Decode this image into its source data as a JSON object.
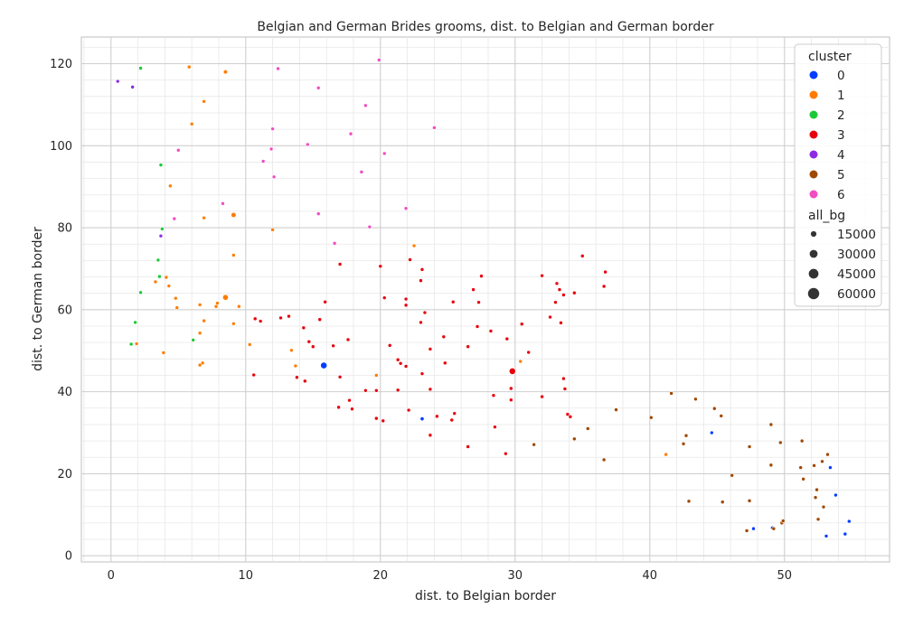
{
  "chart_data": {
    "type": "scatter",
    "title": "Belgian and German Brides grooms, dist. to Belgian and German border",
    "xlabel": "dist. to Belgian border",
    "ylabel": "dist. to German border",
    "xlim": [
      -2.2,
      57.8
    ],
    "ylim": [
      -1.5,
      126.5
    ],
    "xticks": [
      0,
      10,
      20,
      30,
      40,
      50
    ],
    "yticks": [
      0,
      20,
      40,
      60,
      80,
      100,
      120
    ],
    "grid": true,
    "legend": {
      "placement": "top-right",
      "hue_title": "cluster",
      "size_title": "all_bg",
      "size_entries": [
        15000,
        30000,
        45000,
        60000
      ]
    },
    "clusters": [
      {
        "name": "0",
        "color": "#023eff",
        "points": [
          [
            15.8,
            46.4,
            20000
          ],
          [
            23.1,
            33.4,
            7000
          ],
          [
            44.6,
            30.0,
            6000
          ],
          [
            53.4,
            21.5,
            1500
          ],
          [
            53.8,
            14.8,
            2500
          ],
          [
            54.8,
            8.4,
            2000
          ],
          [
            54.5,
            5.3,
            3000
          ],
          [
            53.1,
            4.8,
            1500
          ],
          [
            47.7,
            6.6,
            1500
          ],
          [
            49.1,
            6.8,
            1500
          ]
        ]
      },
      {
        "name": "1",
        "color": "#ff7c00",
        "points": [
          [
            5.8,
            119.2,
            2500
          ],
          [
            8.5,
            118.0,
            8000
          ],
          [
            6.9,
            110.8,
            2500
          ],
          [
            6.0,
            105.3,
            6000
          ],
          [
            4.4,
            90.2,
            1500
          ],
          [
            6.9,
            82.4,
            4000
          ],
          [
            9.1,
            83.1,
            12000
          ],
          [
            12.0,
            79.5,
            2500
          ],
          [
            9.1,
            73.3,
            3000
          ],
          [
            8.5,
            63.0,
            15000
          ],
          [
            4.1,
            67.9,
            2500
          ],
          [
            4.3,
            65.8,
            2500
          ],
          [
            3.3,
            66.8,
            2500
          ],
          [
            4.8,
            62.8,
            2500
          ],
          [
            4.9,
            60.5,
            2500
          ],
          [
            7.8,
            60.8,
            2000
          ],
          [
            7.9,
            61.6,
            2000
          ],
          [
            9.5,
            60.8,
            2000
          ],
          [
            6.6,
            61.2,
            2000
          ],
          [
            9.1,
            56.6,
            2000
          ],
          [
            6.9,
            57.3,
            1500
          ],
          [
            6.6,
            54.3,
            1500
          ],
          [
            10.3,
            51.5,
            2000
          ],
          [
            1.9,
            51.7,
            1500
          ],
          [
            3.9,
            49.5,
            1500
          ],
          [
            6.8,
            47.0,
            1500
          ],
          [
            6.6,
            46.5,
            1500
          ],
          [
            13.4,
            50.1,
            2000
          ],
          [
            13.7,
            46.3,
            3000
          ],
          [
            19.7,
            44.0,
            3500
          ],
          [
            22.5,
            75.6,
            2000
          ],
          [
            30.4,
            47.4,
            1500
          ],
          [
            41.2,
            24.7,
            3500
          ]
        ]
      },
      {
        "name": "2",
        "color": "#1ac938",
        "points": [
          [
            2.2,
            118.9,
            2000
          ],
          [
            3.7,
            95.3,
            3000
          ],
          [
            3.8,
            79.7,
            2000
          ],
          [
            3.5,
            72.1,
            2000
          ],
          [
            3.6,
            68.1,
            2000
          ],
          [
            2.2,
            64.2,
            2000
          ],
          [
            1.8,
            56.9,
            1500
          ],
          [
            1.5,
            51.6,
            3500
          ],
          [
            6.1,
            52.6,
            3500
          ]
        ]
      },
      {
        "name": "3",
        "color": "#e8000b",
        "points": [
          [
            29.8,
            45.0,
            20000
          ],
          [
            17.0,
            71.1,
            3000
          ],
          [
            15.9,
            61.9,
            4500
          ],
          [
            13.2,
            58.4,
            2000
          ],
          [
            12.6,
            58.0,
            2000
          ],
          [
            11.1,
            57.2,
            2000
          ],
          [
            10.7,
            57.8,
            2000
          ],
          [
            15.5,
            57.6,
            3000
          ],
          [
            14.3,
            55.6,
            3000
          ],
          [
            17.6,
            52.7,
            2000
          ],
          [
            16.5,
            51.2,
            3000
          ],
          [
            15.0,
            51.0,
            2000
          ],
          [
            14.7,
            52.2,
            2000
          ],
          [
            17.0,
            43.6,
            2000
          ],
          [
            14.4,
            42.6,
            3000
          ],
          [
            13.8,
            43.5,
            2000
          ],
          [
            10.6,
            44.1,
            2000
          ],
          [
            16.9,
            36.2,
            3000
          ],
          [
            17.7,
            37.9,
            3000
          ],
          [
            17.9,
            35.8,
            2000
          ],
          [
            18.9,
            40.3,
            3000
          ],
          [
            19.7,
            40.3,
            2500
          ],
          [
            19.7,
            33.5,
            2000
          ],
          [
            20.2,
            32.9,
            3000
          ],
          [
            21.3,
            40.4,
            1500
          ],
          [
            22.1,
            35.5,
            2000
          ],
          [
            22.2,
            72.2,
            3500
          ],
          [
            23.1,
            69.8,
            2500
          ],
          [
            23.0,
            67.1,
            2500
          ],
          [
            20.3,
            62.9,
            2500
          ],
          [
            21.9,
            62.6,
            2500
          ],
          [
            21.9,
            61.1,
            3000
          ],
          [
            23.3,
            59.3,
            2000
          ],
          [
            23.0,
            56.9,
            2500
          ],
          [
            20.7,
            51.3,
            2000
          ],
          [
            21.9,
            46.2,
            3500
          ],
          [
            21.5,
            46.9,
            2500
          ],
          [
            21.3,
            47.8,
            2000
          ],
          [
            23.7,
            50.4,
            1500
          ],
          [
            23.1,
            44.4,
            2000
          ],
          [
            23.7,
            40.6,
            2500
          ],
          [
            24.2,
            34.0,
            2500
          ],
          [
            23.7,
            29.4,
            2000
          ],
          [
            24.8,
            47.0,
            3000
          ],
          [
            24.7,
            53.4,
            2000
          ],
          [
            25.4,
            61.9,
            2000
          ],
          [
            25.5,
            34.7,
            2000
          ],
          [
            26.5,
            51.0,
            3000
          ],
          [
            26.9,
            64.9,
            2000
          ],
          [
            27.3,
            61.8,
            2500
          ],
          [
            27.5,
            68.2,
            3000
          ],
          [
            27.2,
            55.9,
            2000
          ],
          [
            26.5,
            26.6,
            3000
          ],
          [
            25.3,
            33.1,
            2000
          ],
          [
            28.4,
            39.1,
            3000
          ],
          [
            28.5,
            31.4,
            2000
          ],
          [
            29.4,
            52.9,
            2000
          ],
          [
            29.3,
            24.9,
            2000
          ],
          [
            29.7,
            40.8,
            2500
          ],
          [
            29.7,
            38.0,
            3500
          ],
          [
            30.5,
            56.5,
            2500
          ],
          [
            31.0,
            49.6,
            2000
          ],
          [
            32.0,
            68.3,
            2500
          ],
          [
            32.6,
            58.2,
            2000
          ],
          [
            33.1,
            66.4,
            2000
          ],
          [
            33.3,
            64.9,
            2000
          ],
          [
            33.4,
            56.8,
            2000
          ],
          [
            33.6,
            63.6,
            2000
          ],
          [
            33.6,
            43.2,
            2000
          ],
          [
            33.7,
            40.7,
            3000
          ],
          [
            33.0,
            61.8,
            2000
          ],
          [
            34.4,
            64.1,
            2000
          ],
          [
            34.1,
            33.9,
            2000
          ],
          [
            33.9,
            34.5,
            2000
          ],
          [
            32.0,
            38.8,
            2500
          ],
          [
            35.0,
            73.1,
            2500
          ],
          [
            36.7,
            69.2,
            3000
          ],
          [
            36.6,
            65.7,
            3000
          ],
          [
            20.0,
            70.6,
            2000
          ],
          [
            28.2,
            54.8,
            2000
          ]
        ]
      },
      {
        "name": "4",
        "color": "#8b2be2",
        "points": [
          [
            0.5,
            115.7,
            2000
          ],
          [
            1.6,
            114.3,
            2000
          ],
          [
            3.7,
            78.0,
            2500
          ]
        ]
      },
      {
        "name": "5",
        "color": "#9f4800",
        "points": [
          [
            31.4,
            27.1,
            4000
          ],
          [
            34.4,
            28.5,
            2500
          ],
          [
            35.4,
            31.0,
            4500
          ],
          [
            36.6,
            23.4,
            2500
          ],
          [
            37.5,
            35.6,
            2000
          ],
          [
            40.1,
            33.7,
            2500
          ],
          [
            41.6,
            39.6,
            1500
          ],
          [
            42.5,
            27.3,
            2500
          ],
          [
            42.7,
            29.3,
            2500
          ],
          [
            42.9,
            13.3,
            2500
          ],
          [
            43.4,
            38.2,
            2500
          ],
          [
            44.8,
            35.9,
            2500
          ],
          [
            45.3,
            34.1,
            2000
          ],
          [
            45.4,
            13.1,
            2000
          ],
          [
            46.1,
            19.6,
            2500
          ],
          [
            47.2,
            6.1,
            2000
          ],
          [
            47.4,
            26.6,
            2500
          ],
          [
            47.4,
            13.4,
            3000
          ],
          [
            49.0,
            32.0,
            2000
          ],
          [
            49.0,
            22.1,
            2500
          ],
          [
            49.2,
            6.6,
            2500
          ],
          [
            49.7,
            27.6,
            1500
          ],
          [
            49.8,
            8.0,
            2500
          ],
          [
            49.9,
            8.5,
            2000
          ],
          [
            51.2,
            21.5,
            2500
          ],
          [
            51.3,
            28.0,
            2500
          ],
          [
            51.4,
            18.7,
            2000
          ],
          [
            52.2,
            22.0,
            2000
          ],
          [
            52.3,
            14.2,
            2000
          ],
          [
            52.4,
            16.1,
            1500
          ],
          [
            52.5,
            8.9,
            2000
          ],
          [
            52.8,
            23.0,
            1500
          ],
          [
            52.9,
            11.9,
            2500
          ],
          [
            53.2,
            24.7,
            2000
          ]
        ]
      },
      {
        "name": "6",
        "color": "#f14cc1",
        "points": [
          [
            19.9,
            120.9,
            2000
          ],
          [
            12.4,
            118.8,
            2500
          ],
          [
            15.4,
            114.1,
            3500
          ],
          [
            18.9,
            109.8,
            2500
          ],
          [
            24.0,
            104.4,
            2000
          ],
          [
            12.0,
            104.1,
            3000
          ],
          [
            17.8,
            102.9,
            2500
          ],
          [
            14.6,
            100.3,
            1500
          ],
          [
            11.9,
            99.2,
            2500
          ],
          [
            5.0,
            98.9,
            3000
          ],
          [
            20.3,
            98.1,
            2500
          ],
          [
            11.3,
            96.2,
            2500
          ],
          [
            18.6,
            93.6,
            3500
          ],
          [
            12.1,
            92.4,
            3500
          ],
          [
            8.3,
            85.9,
            3500
          ],
          [
            21.9,
            84.7,
            2500
          ],
          [
            15.4,
            83.4,
            2000
          ],
          [
            4.7,
            82.2,
            1500
          ],
          [
            19.2,
            80.2,
            2000
          ],
          [
            16.6,
            76.2,
            5000
          ]
        ]
      }
    ]
  }
}
